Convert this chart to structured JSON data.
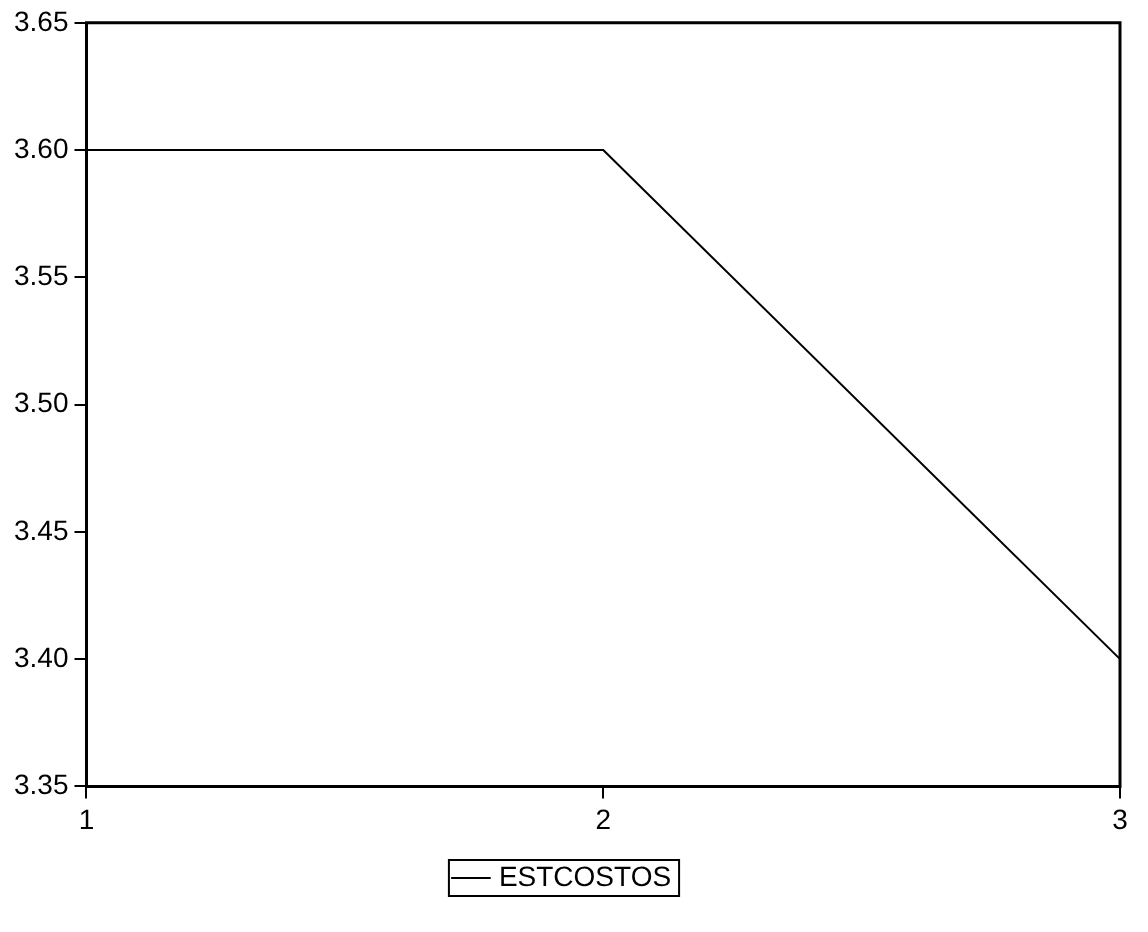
{
  "chart_data": {
    "type": "line",
    "x": [
      1,
      2,
      3
    ],
    "series": [
      {
        "name": "ESTCOSTOS",
        "color": "#000000",
        "values": [
          3.6,
          3.6,
          3.4
        ]
      }
    ],
    "xlim": [
      1,
      3
    ],
    "xticks": [
      1,
      2,
      3
    ],
    "ylim": [
      3.35,
      3.65
    ],
    "yticks": [
      3.35,
      {
        "value": 3.4,
        "label": "3.40"
      },
      3.45,
      {
        "value": 3.5,
        "label": "3.50"
      },
      3.55,
      {
        "value": 3.6,
        "label": "3.60"
      },
      3.65
    ],
    "grid": false,
    "legend": "bottom",
    "marker": "none",
    "line_style": "solid"
  }
}
